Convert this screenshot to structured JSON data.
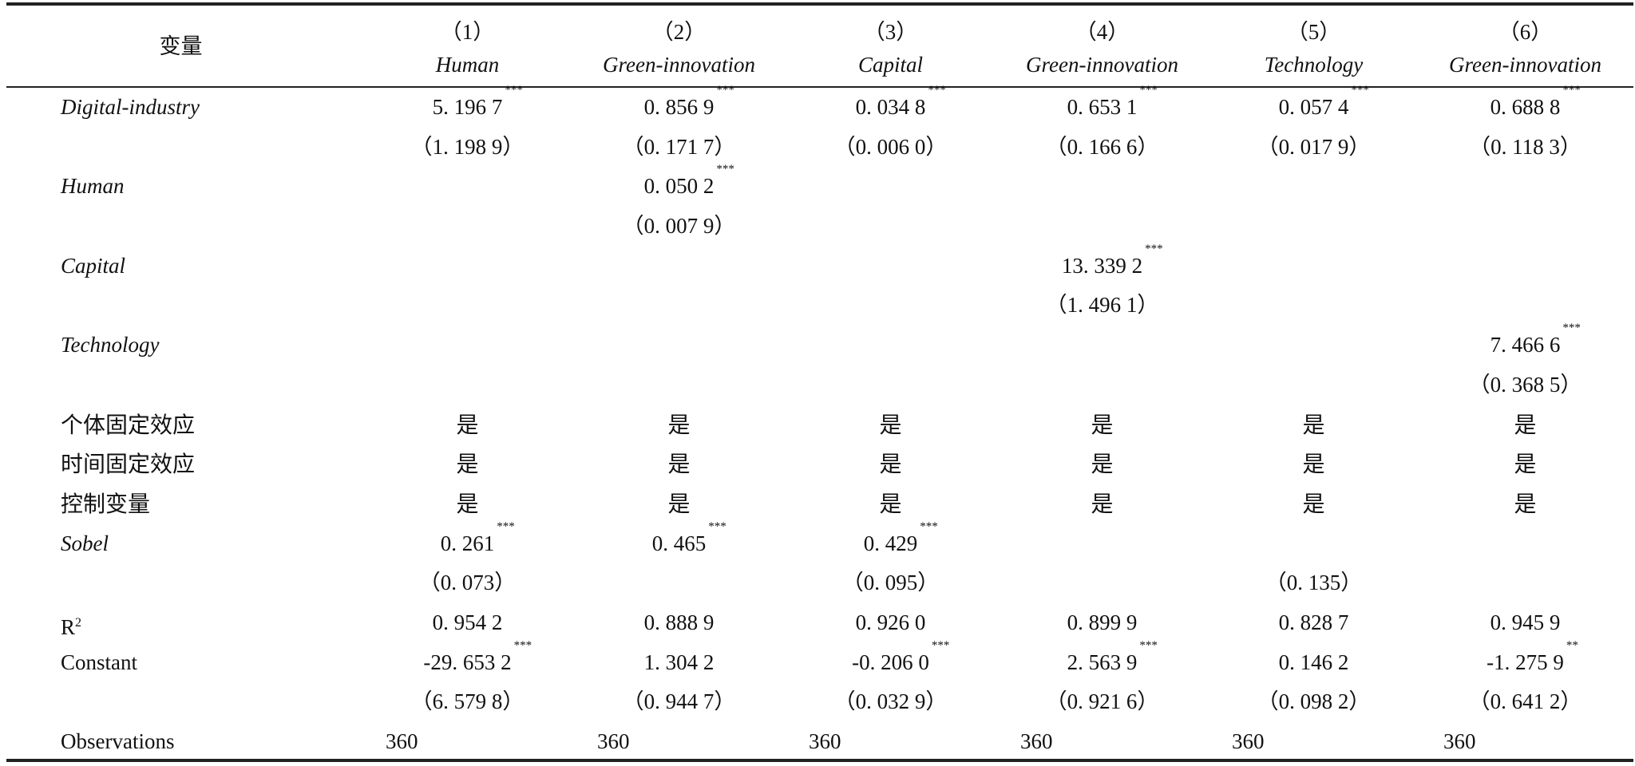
{
  "header": {
    "variable_label": "变量",
    "columns": [
      {
        "num": "（1）",
        "name": "Human"
      },
      {
        "num": "（2）",
        "name": "Green-innovation"
      },
      {
        "num": "（3）",
        "name": "Capital"
      },
      {
        "num": "（4）",
        "name": "Green-innovation"
      },
      {
        "num": "（5）",
        "name": "Technology"
      },
      {
        "num": "（6）",
        "name": "Green-innovation"
      }
    ]
  },
  "rows": [
    {
      "label": "Digital-industry",
      "style": "it",
      "cells": [
        {
          "v": "5. 196 7",
          "s": "***"
        },
        {
          "v": "0. 856 9",
          "s": "***"
        },
        {
          "v": "0. 034 8",
          "s": "***"
        },
        {
          "v": "0. 653 1",
          "s": "***"
        },
        {
          "v": "0. 057 4",
          "s": "***"
        },
        {
          "v": "0. 688 8",
          "s": "***"
        }
      ]
    },
    {
      "label": "",
      "style": "",
      "cells": [
        {
          "v": "（1. 198 9）"
        },
        {
          "v": "（0. 171 7）"
        },
        {
          "v": "（0. 006 0）"
        },
        {
          "v": "（0. 166 6）"
        },
        {
          "v": "（0. 017 9）"
        },
        {
          "v": "（0. 118 3）"
        }
      ]
    },
    {
      "label": "Human",
      "style": "it",
      "cells": [
        {
          "v": ""
        },
        {
          "v": "0. 050 2",
          "s": "***"
        },
        {
          "v": ""
        },
        {
          "v": ""
        },
        {
          "v": ""
        },
        {
          "v": ""
        }
      ]
    },
    {
      "label": "",
      "style": "",
      "cells": [
        {
          "v": ""
        },
        {
          "v": "（0. 007 9）"
        },
        {
          "v": ""
        },
        {
          "v": ""
        },
        {
          "v": ""
        },
        {
          "v": ""
        }
      ]
    },
    {
      "label": "Capital",
      "style": "it",
      "cells": [
        {
          "v": ""
        },
        {
          "v": ""
        },
        {
          "v": ""
        },
        {
          "v": "13. 339 2",
          "s": "***"
        },
        {
          "v": ""
        },
        {
          "v": ""
        }
      ]
    },
    {
      "label": "",
      "style": "",
      "cells": [
        {
          "v": ""
        },
        {
          "v": ""
        },
        {
          "v": ""
        },
        {
          "v": "（1. 496 1）"
        },
        {
          "v": ""
        },
        {
          "v": ""
        }
      ]
    },
    {
      "label": "Technology",
      "style": "it",
      "cells": [
        {
          "v": ""
        },
        {
          "v": ""
        },
        {
          "v": ""
        },
        {
          "v": ""
        },
        {
          "v": ""
        },
        {
          "v": "7. 466 6",
          "s": "***"
        }
      ]
    },
    {
      "label": "",
      "style": "",
      "cells": [
        {
          "v": ""
        },
        {
          "v": ""
        },
        {
          "v": ""
        },
        {
          "v": ""
        },
        {
          "v": ""
        },
        {
          "v": "（0. 368 5）"
        }
      ]
    },
    {
      "label": "个体固定效应",
      "style": "cjk",
      "cells": [
        {
          "v": "是"
        },
        {
          "v": "是"
        },
        {
          "v": "是"
        },
        {
          "v": "是"
        },
        {
          "v": "是"
        },
        {
          "v": "是"
        }
      ]
    },
    {
      "label": "时间固定效应",
      "style": "cjk",
      "cells": [
        {
          "v": "是"
        },
        {
          "v": "是"
        },
        {
          "v": "是"
        },
        {
          "v": "是"
        },
        {
          "v": "是"
        },
        {
          "v": "是"
        }
      ]
    },
    {
      "label": "控制变量",
      "style": "cjk",
      "cells": [
        {
          "v": "是"
        },
        {
          "v": "是"
        },
        {
          "v": "是"
        },
        {
          "v": "是"
        },
        {
          "v": "是"
        },
        {
          "v": "是"
        }
      ]
    },
    {
      "label": "Sobel",
      "style": "it",
      "cells": [
        {
          "v": "0. 261",
          "s": "***"
        },
        {
          "v": "0. 465",
          "s": "***"
        },
        {
          "v": "0. 429",
          "s": "***"
        },
        {
          "v": ""
        },
        {
          "v": ""
        },
        {
          "v": ""
        }
      ]
    },
    {
      "label": "",
      "style": "",
      "cells": [
        {
          "v": "（0. 073）"
        },
        {
          "v": ""
        },
        {
          "v": "（0. 095）"
        },
        {
          "v": ""
        },
        {
          "v": "（0. 135）"
        },
        {
          "v": ""
        }
      ]
    },
    {
      "label": "R",
      "sup": "2",
      "style": "",
      "cells": [
        {
          "v": "0. 954 2"
        },
        {
          "v": "0. 888 9"
        },
        {
          "v": "0. 926 0"
        },
        {
          "v": "0. 899 9"
        },
        {
          "v": "0. 828 7"
        },
        {
          "v": "0. 945 9"
        }
      ]
    },
    {
      "label": "Constant",
      "style": "",
      "cells": [
        {
          "v": "-29. 653 2",
          "s": "***"
        },
        {
          "v": "1. 304 2"
        },
        {
          "v": "-0. 206 0",
          "s": "***"
        },
        {
          "v": "2. 563 9",
          "s": "***"
        },
        {
          "v": "0. 146 2"
        },
        {
          "v": "-1. 275 9",
          "s": "**"
        }
      ]
    },
    {
      "label": "",
      "style": "",
      "cells": [
        {
          "v": "（6. 579 8）"
        },
        {
          "v": "（0. 944 7）"
        },
        {
          "v": "（0. 032 9）"
        },
        {
          "v": "（0. 921 6）"
        },
        {
          "v": "（0. 098 2）"
        },
        {
          "v": "（0. 641 2）"
        }
      ]
    },
    {
      "label": "Observations",
      "style": "",
      "align": "left",
      "cells": [
        {
          "v": "360"
        },
        {
          "v": "360"
        },
        {
          "v": "360"
        },
        {
          "v": "360"
        },
        {
          "v": "360"
        },
        {
          "v": "360"
        }
      ]
    }
  ]
}
